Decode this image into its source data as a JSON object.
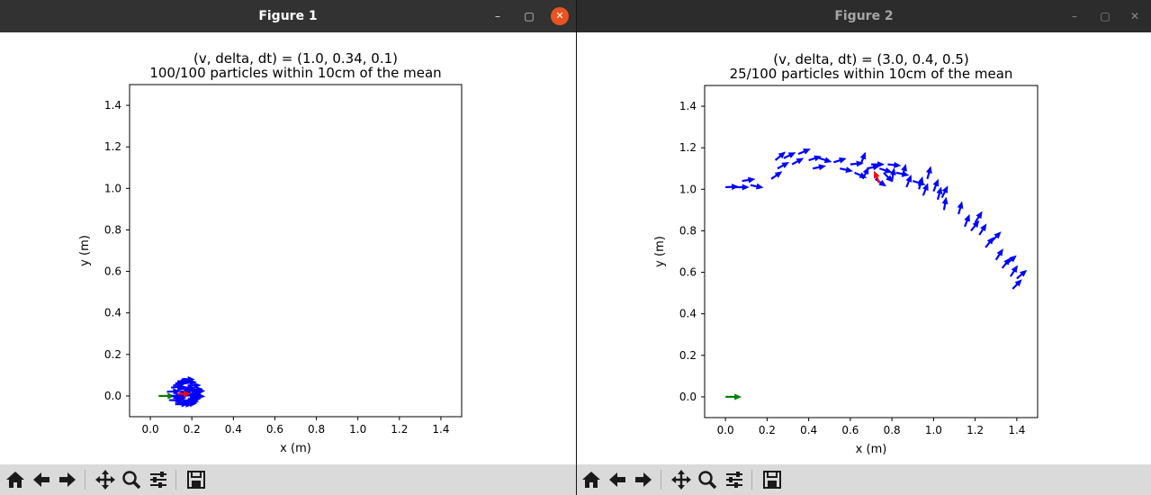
{
  "windows": [
    {
      "title": "Figure 1",
      "controls": {
        "minimize": "–",
        "maximize": "▢",
        "close": "✕"
      },
      "toolbar": [
        "home-icon",
        "back-arrow-icon",
        "forward-arrow-icon",
        "pan-icon",
        "zoom-icon",
        "configure-subplots-icon",
        "save-icon"
      ]
    },
    {
      "title": "Figure 2",
      "controls": {
        "minimize": "–",
        "maximize": "▢",
        "close": "✕"
      },
      "toolbar": [
        "home-icon",
        "back-arrow-icon",
        "forward-arrow-icon",
        "pan-icon",
        "zoom-icon",
        "configure-subplots-icon",
        "save-icon"
      ]
    }
  ],
  "chart_data": [
    {
      "type": "scatter",
      "title": "(v, delta, dt) = (1.0, 0.34, 0.1)",
      "subtitle": "100/100 particles within 10cm of the mean",
      "xlabel": "x (m)",
      "ylabel": "y (m)",
      "xlim": [
        -0.1,
        1.5
      ],
      "ylim": [
        -0.1,
        1.5
      ],
      "xticks": [
        "0.0",
        "0.2",
        "0.4",
        "0.6",
        "0.8",
        "1.0",
        "1.2",
        "1.4"
      ],
      "yticks": [
        "0.0",
        "0.2",
        "0.4",
        "0.6",
        "0.8",
        "1.0",
        "1.2",
        "1.4"
      ],
      "grid": false,
      "colors": {
        "particles": "#0000ff",
        "mean": "#ff0000",
        "start": "#008000"
      },
      "series": [
        {
          "kind": "start",
          "points": [
            [
              0.04,
              0.0,
              0.0
            ]
          ]
        },
        {
          "kind": "particles",
          "points": [
            [
              0.08,
              0.02,
              0.05
            ],
            [
              0.1,
              0.04,
              0.1
            ],
            [
              0.12,
              0.06,
              0.15
            ],
            [
              0.14,
              0.07,
              0.08
            ],
            [
              0.16,
              0.06,
              0.12
            ],
            [
              0.18,
              0.05,
              0.03
            ],
            [
              0.19,
              0.03,
              0.06
            ],
            [
              0.1,
              0.0,
              0.0
            ],
            [
              0.12,
              0.01,
              -0.05
            ],
            [
              0.14,
              0.02,
              0.04
            ],
            [
              0.16,
              0.0,
              0.09
            ],
            [
              0.18,
              0.01,
              0.0
            ],
            [
              0.2,
              0.02,
              0.07
            ],
            [
              0.09,
              -0.02,
              -0.03
            ],
            [
              0.11,
              -0.01,
              0.02
            ],
            [
              0.13,
              -0.03,
              0.0
            ],
            [
              0.15,
              -0.02,
              -0.06
            ],
            [
              0.17,
              -0.03,
              0.05
            ],
            [
              0.19,
              -0.01,
              0.1
            ],
            [
              0.11,
              0.05,
              0.2
            ],
            [
              0.13,
              0.03,
              0.14
            ],
            [
              0.15,
              0.04,
              0.0
            ],
            [
              0.17,
              0.03,
              -0.08
            ],
            [
              0.12,
              -0.04,
              0.03
            ],
            [
              0.14,
              -0.04,
              -0.02
            ],
            [
              0.16,
              -0.04,
              0.06
            ],
            [
              0.18,
              -0.02,
              0.11
            ],
            [
              0.2,
              0.0,
              -0.04
            ],
            [
              0.13,
              0.07,
              0.09
            ],
            [
              0.15,
              0.08,
              0.0
            ]
          ]
        },
        {
          "kind": "mean",
          "points": [
            [
              0.13,
              0.01,
              0.0
            ]
          ]
        }
      ]
    },
    {
      "type": "scatter",
      "title": "(v, delta, dt) = (3.0, 0.4, 0.5)",
      "subtitle": "25/100 particles within 10cm of the mean",
      "xlabel": "x (m)",
      "ylabel": "y (m)",
      "xlim": [
        -0.1,
        1.5
      ],
      "ylim": [
        -0.1,
        1.5
      ],
      "xticks": [
        "0.0",
        "0.2",
        "0.4",
        "0.6",
        "0.8",
        "1.0",
        "1.2",
        "1.4"
      ],
      "yticks": [
        "0.0",
        "0.2",
        "0.4",
        "0.6",
        "0.8",
        "1.0",
        "1.2",
        "1.4"
      ],
      "grid": false,
      "colors": {
        "particles": "#0000ff",
        "mean": "#ff0000",
        "start": "#008000"
      },
      "series": [
        {
          "kind": "start",
          "points": [
            [
              0.0,
              0.0,
              0.0
            ]
          ]
        },
        {
          "kind": "particles",
          "points": [
            [
              0.0,
              1.01,
              0.05
            ],
            [
              0.05,
              1.01,
              0.0
            ],
            [
              0.08,
              1.04,
              0.15
            ],
            [
              0.12,
              1.02,
              -0.2
            ],
            [
              0.22,
              1.05,
              0.6
            ],
            [
              0.25,
              1.1,
              0.5
            ],
            [
              0.28,
              1.15,
              0.45
            ],
            [
              0.24,
              1.14,
              0.7
            ],
            [
              0.32,
              1.12,
              0.5
            ],
            [
              0.35,
              1.17,
              0.4
            ],
            [
              0.4,
              1.14,
              0.3
            ],
            [
              0.45,
              1.15,
              -0.3
            ],
            [
              0.42,
              1.1,
              0.2
            ],
            [
              0.52,
              1.13,
              0.3
            ],
            [
              0.55,
              1.1,
              -0.2
            ],
            [
              0.6,
              1.12,
              0.1
            ],
            [
              0.62,
              1.08,
              -0.4
            ],
            [
              0.65,
              1.12,
              1.2
            ],
            [
              0.66,
              1.05,
              1.1
            ],
            [
              0.68,
              1.1,
              0.2
            ],
            [
              0.7,
              1.12,
              0.0
            ],
            [
              0.72,
              1.05,
              -0.6
            ],
            [
              0.74,
              1.1,
              -0.3
            ],
            [
              0.76,
              1.08,
              -0.8
            ],
            [
              0.78,
              1.12,
              -0.1
            ],
            [
              0.8,
              1.04,
              1.4
            ],
            [
              0.82,
              1.08,
              -0.2
            ],
            [
              0.85,
              1.06,
              1.3
            ],
            [
              0.87,
              1.01,
              1.2
            ],
            [
              0.9,
              1.04,
              -0.3
            ],
            [
              0.93,
              1.0,
              1.3
            ],
            [
              0.95,
              0.97,
              1.2
            ],
            [
              0.97,
              1.05,
              1.3
            ],
            [
              1.0,
              0.99,
              1.2
            ],
            [
              1.02,
              0.95,
              1.3
            ],
            [
              1.05,
              0.9,
              1.4
            ],
            [
              1.04,
              0.96,
              1.1
            ],
            [
              1.12,
              0.88,
              1.3
            ],
            [
              1.15,
              0.82,
              1.2
            ],
            [
              1.18,
              0.8,
              0.9
            ],
            [
              1.2,
              0.84,
              1.0
            ],
            [
              1.22,
              0.78,
              1.0
            ],
            [
              1.25,
              0.72,
              0.9
            ],
            [
              1.28,
              0.75,
              0.8
            ],
            [
              1.3,
              0.66,
              1.0
            ],
            [
              1.33,
              0.62,
              0.9
            ],
            [
              1.35,
              0.64,
              0.7
            ],
            [
              1.37,
              0.58,
              1.0
            ],
            [
              1.38,
              0.52,
              0.8
            ],
            [
              1.4,
              0.57,
              0.7
            ]
          ]
        },
        {
          "kind": "mean",
          "points": [
            [
              0.74,
              1.03,
              2.0
            ]
          ]
        }
      ]
    }
  ]
}
